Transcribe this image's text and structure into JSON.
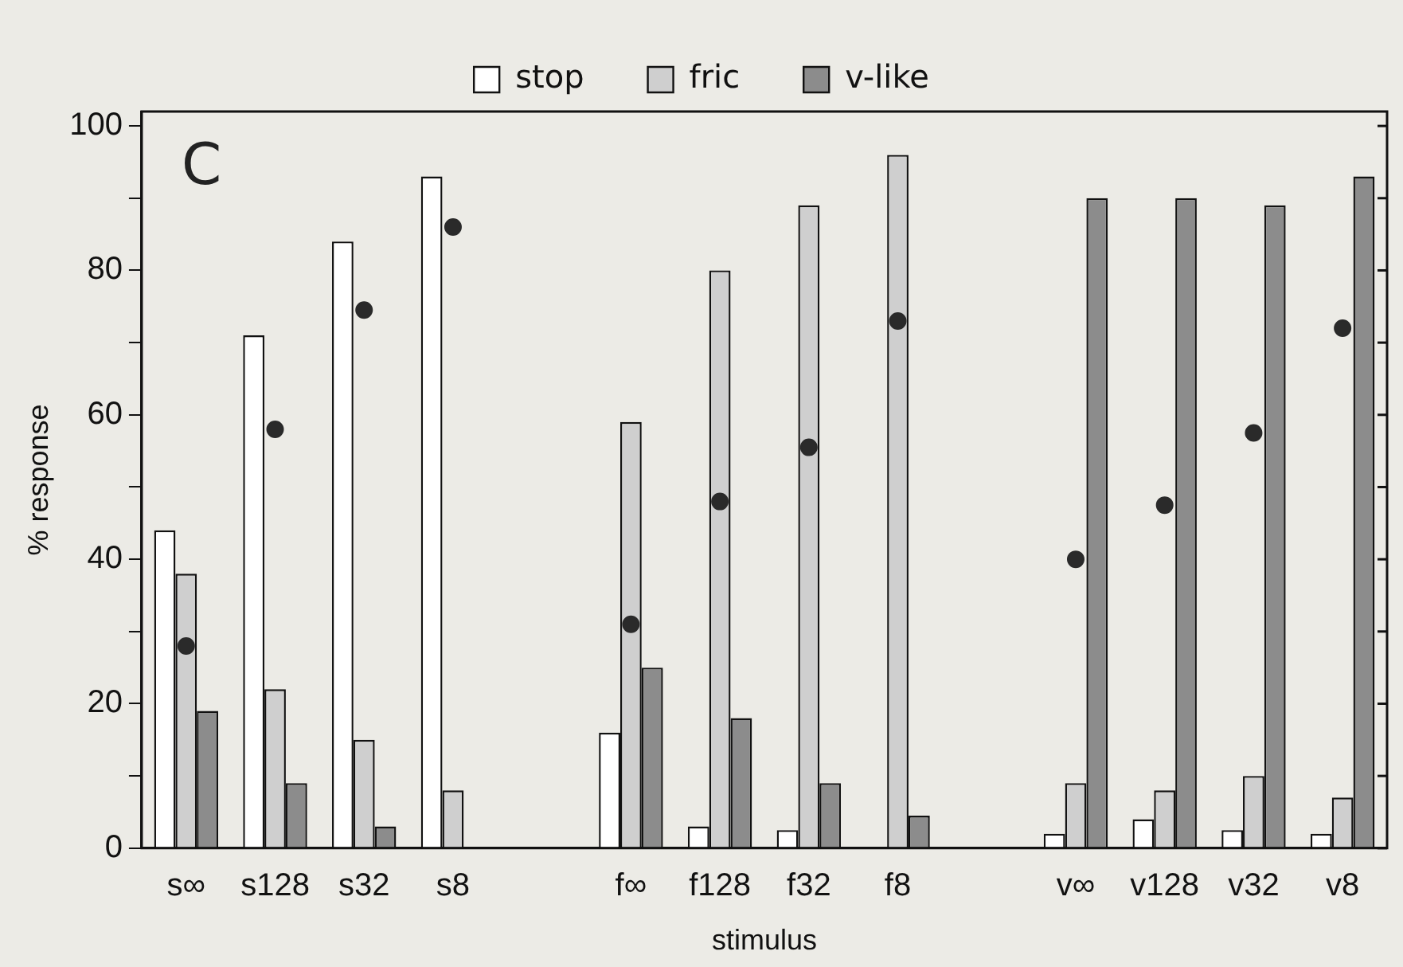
{
  "chart_data": {
    "type": "bar",
    "xlabel": "stimulus",
    "ylabel": "% response",
    "annotations": [
      "C"
    ],
    "categories": [
      "s∞",
      "s128",
      "s32",
      "s8",
      null,
      "f∞",
      "f128",
      "f32",
      "f8",
      null,
      "v∞",
      "v128",
      "v32",
      "v8"
    ],
    "series": [
      {
        "name": "stop",
        "color": "#ffffff",
        "values": [
          44,
          71,
          84,
          93,
          null,
          16,
          3,
          2.5,
          0,
          null,
          2,
          4,
          2.5,
          2
        ]
      },
      {
        "name": "fric",
        "color": "#cfcfcf",
        "values": [
          38,
          22,
          15,
          8,
          null,
          59,
          80,
          89,
          96,
          null,
          9,
          8,
          10,
          7
        ]
      },
      {
        "name": "v-like",
        "color": "#8c8c8c",
        "values": [
          19,
          9,
          3,
          0,
          null,
          25,
          18,
          9,
          4.5,
          null,
          90,
          90,
          89,
          93
        ]
      },
      {
        "type": "scatter",
        "color": "#2a2a2a",
        "marker": "circle",
        "values": [
          28,
          58,
          74.5,
          86,
          null,
          31,
          48,
          55.5,
          73,
          null,
          40,
          47.5,
          57.5,
          72
        ]
      }
    ],
    "ylim": [
      0,
      102
    ],
    "yticks": [
      0,
      {
        "value": 10,
        "label": null
      },
      20,
      {
        "value": 30,
        "label": null
      },
      40,
      {
        "value": 50,
        "label": null
      },
      60,
      {
        "value": 70,
        "label": null
      },
      80,
      {
        "value": 90,
        "label": null
      },
      100
    ],
    "grid": false,
    "legend": "top"
  }
}
